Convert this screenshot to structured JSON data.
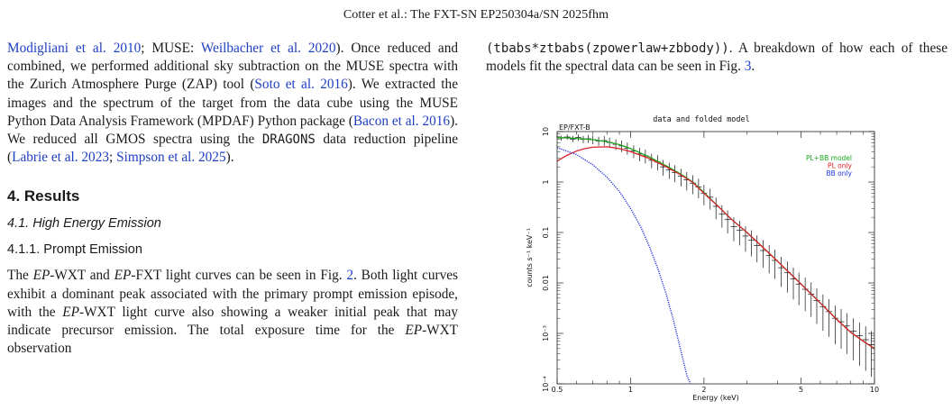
{
  "header": {
    "running_head": "Cotter et al.: The FXT-SN EP250304a/SN 2025fhm"
  },
  "left_column": {
    "p1": {
      "t1": "Modigliani et al. 2010",
      "t2": "; MUSE: ",
      "t3": "Weilbacher et al. 2020",
      "t4": "). Once reduced and combined, we performed additional sky subtraction on the MUSE spectra with the Zurich Atmosphere Purge (ZAP) tool (",
      "t5": "Soto et al. 2016",
      "t6": "). We extracted the images and the spectrum of the target from the data cube using the MUSE Python Data Analysis Framework (MPDAF) Python package (",
      "t7": "Bacon et al. 2016",
      "t8": "). We reduced all GMOS spectra using the ",
      "t9": "DRAGONS",
      "t10": " data reduction pipeline (",
      "t11": "Labrie et al. 2023",
      "t12": "; ",
      "t13": "Simpson et al. 2025",
      "t14": ")."
    },
    "section": "4. Results",
    "subsection": "4.1. High Energy Emission",
    "subsubsection": "4.1.1. Prompt Emission",
    "p2": {
      "t1": "The ",
      "t2": "EP",
      "t3": "-WXT and ",
      "t4": "EP",
      "t5": "-FXT light curves can be seen in Fig. ",
      "t6": "2",
      "t7": ". Both light curves exhibit a dominant peak associated with the primary prompt emission episode, with the ",
      "t8": "EP",
      "t9": "-WXT light curve also showing a weaker initial peak that may indicate precursor emission. The total exposure time for the ",
      "t10": "EP",
      "t11": "-WXT observation"
    }
  },
  "right_column": {
    "p1": {
      "t1": "(tbabs*ztbabs(zpowerlaw+zbbody))",
      "t2": ". A breakdown of how each of these models fit the spectral data can be seen in Fig. ",
      "t3": "3",
      "t4": "."
    }
  },
  "chart_data": {
    "type": "scatter",
    "title": "data and folded model",
    "panel_label": "EP/FXT-B",
    "xlabel": "Energy (keV)",
    "ylabel": "counts s⁻¹ keV⁻¹",
    "xscale": "log",
    "yscale": "log",
    "xlim": [
      0.5,
      10
    ],
    "ylim": [
      0.0001,
      10
    ],
    "x_ticks": [
      "0.5",
      "1",
      "2",
      "5",
      "10"
    ],
    "y_ticks": [
      "10",
      "1",
      "0.1",
      "0.01",
      "10⁻³",
      "10⁻⁴"
    ],
    "legend_position": "top-right",
    "legend": [
      {
        "name": "PL+BB model",
        "color": "#1ea81e"
      },
      {
        "name": "PL only",
        "color": "#d8202a"
      },
      {
        "name": "BB only",
        "color": "#2233dd"
      }
    ],
    "data_points": {
      "x": [
        0.52,
        0.55,
        0.58,
        0.61,
        0.64,
        0.67,
        0.7,
        0.74,
        0.78,
        0.82,
        0.87,
        0.92,
        0.97,
        1.03,
        1.09,
        1.15,
        1.22,
        1.29,
        1.36,
        1.44,
        1.52,
        1.61,
        1.7,
        1.8,
        1.9,
        2.0,
        2.12,
        2.24,
        2.37,
        2.5,
        2.65,
        2.8,
        2.96,
        3.13,
        3.3,
        3.5,
        3.7,
        3.9,
        4.15,
        4.4,
        4.65,
        4.9,
        5.2,
        5.5,
        5.8,
        6.15,
        6.5,
        6.9,
        7.3,
        7.7,
        8.2,
        8.7,
        9.2,
        9.7
      ],
      "y": [
        7.4,
        7.8,
        7.1,
        7.6,
        7.0,
        7.2,
        6.9,
        6.5,
        6.6,
        6.1,
        5.6,
        5.2,
        4.7,
        4.1,
        3.6,
        3.3,
        2.7,
        2.5,
        2.0,
        1.75,
        1.55,
        1.3,
        1.1,
        0.95,
        0.8,
        0.6,
        0.5,
        0.33,
        0.23,
        0.18,
        0.13,
        0.11,
        0.085,
        0.07,
        0.055,
        0.044,
        0.035,
        0.028,
        0.02,
        0.016,
        0.012,
        0.0095,
        0.0075,
        0.006,
        0.0045,
        0.0034,
        0.0027,
        0.002,
        0.0017,
        0.0014,
        0.0011,
        0.0009,
        0.00075,
        0.0006
      ]
    },
    "series": [
      {
        "name": "PL+BB model",
        "x": [
          0.5,
          0.55,
          0.6,
          0.7,
          0.8,
          0.9,
          1.0,
          1.2,
          1.4,
          1.6,
          1.8,
          2.0,
          2.3,
          2.6,
          3.0,
          3.5,
          4.0,
          5.0,
          6.0,
          7.0,
          8.0,
          9.0,
          10.0
        ],
        "y": [
          7.6,
          7.5,
          7.3,
          6.9,
          6.3,
          5.5,
          4.6,
          3.1,
          2.1,
          1.45,
          1.0,
          0.62,
          0.32,
          0.18,
          0.1,
          0.05,
          0.027,
          0.0095,
          0.004,
          0.0019,
          0.00105,
          0.0007,
          0.0005
        ]
      },
      {
        "name": "PL only",
        "x": [
          0.5,
          0.55,
          0.6,
          0.65,
          0.7,
          0.8,
          0.9,
          1.0,
          1.2,
          1.4,
          1.6,
          1.8,
          2.0,
          2.3,
          2.6,
          3.0,
          3.5,
          4.0,
          5.0,
          6.0,
          7.0,
          8.0,
          9.0,
          10.0
        ],
        "y": [
          2.6,
          3.4,
          4.1,
          4.6,
          4.9,
          5.0,
          4.6,
          4.0,
          2.9,
          2.0,
          1.4,
          0.98,
          0.6,
          0.32,
          0.18,
          0.1,
          0.05,
          0.027,
          0.0095,
          0.004,
          0.0019,
          0.00105,
          0.0007,
          0.0005
        ]
      },
      {
        "name": "BB only",
        "x": [
          0.5,
          0.6,
          0.7,
          0.8,
          0.9,
          1.0,
          1.1,
          1.2,
          1.3,
          1.4,
          1.5,
          1.6,
          1.7,
          1.76
        ],
        "y": [
          4.8,
          3.5,
          2.2,
          1.25,
          0.65,
          0.3,
          0.13,
          0.05,
          0.018,
          0.006,
          0.0018,
          0.0005,
          0.00015,
          0.0001
        ]
      }
    ]
  }
}
